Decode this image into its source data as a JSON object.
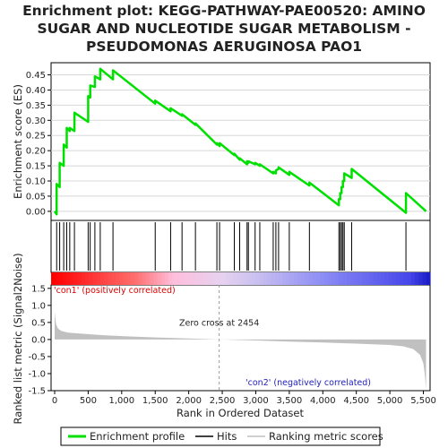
{
  "chart_data": {
    "type": "line",
    "title_lines": [
      "Enrichment plot: KEGG-PATHWAY-PAE00520: AMINO",
      "SUGAR AND NUCLEOTIDE SUGAR METABOLISM -",
      "PSEUDOMONAS AERUGINOSA PAO1"
    ],
    "xlabel": "Rank in Ordered Dataset",
    "ylabel_top": "Enrichment score (ES)",
    "ylabel_bottom": "Ranked list metric (Signal2Noise)",
    "xlim": [
      0,
      5600
    ],
    "x_ticks": [
      0,
      500,
      1000,
      1500,
      2000,
      2500,
      3000,
      3500,
      4000,
      4500,
      5000,
      5500
    ],
    "x_tick_labels": [
      "0",
      "500",
      "1,000",
      "1,500",
      "2,000",
      "2,500",
      "3,000",
      "3,500",
      "4,000",
      "4,500",
      "5,000",
      "5,500"
    ],
    "es_ylim": [
      -0.03,
      0.49
    ],
    "es_ticks": [
      0.0,
      0.05,
      0.1,
      0.15,
      0.2,
      0.25,
      0.3,
      0.35,
      0.4,
      0.45
    ],
    "es_tick_labels": [
      "0.00",
      "0.05",
      "0.10",
      "0.15",
      "0.20",
      "0.25",
      "0.30",
      "0.35",
      "0.40",
      "0.45"
    ],
    "metric_ylim": [
      -1.5,
      1.6
    ],
    "metric_ticks": [
      -1.5,
      -1.0,
      -0.5,
      0.0,
      0.5,
      1.0,
      1.5
    ],
    "metric_tick_labels": [
      "-1.5",
      "-1.0",
      "-0.5",
      "0.0",
      "0.5",
      "1.0",
      "1.5"
    ],
    "hits": [
      30,
      75,
      135,
      180,
      225,
      295,
      500,
      530,
      600,
      680,
      870,
      1500,
      1730,
      1900,
      2100,
      2420,
      2460,
      2680,
      2760,
      2870,
      2890,
      2990,
      3060,
      3260,
      3300,
      3340,
      3500,
      3800,
      4240,
      4260,
      4280,
      4300,
      4320,
      4430,
      5240
    ],
    "es_curve": {
      "x": [
        0,
        30,
        30,
        75,
        75,
        135,
        135,
        180,
        180,
        225,
        225,
        295,
        295,
        500,
        500,
        530,
        530,
        600,
        600,
        680,
        680,
        870,
        870,
        1500,
        1500,
        1730,
        1730,
        1900,
        1900,
        2100,
        2100,
        2420,
        2420,
        2460,
        2460,
        2680,
        2680,
        2760,
        2760,
        2870,
        2870,
        2890,
        2890,
        2990,
        2990,
        3060,
        3060,
        3260,
        3260,
        3300,
        3300,
        3340,
        3340,
        3500,
        3500,
        3800,
        3800,
        4240,
        4240,
        4260,
        4260,
        4280,
        4280,
        4300,
        4300,
        4320,
        4320,
        4430,
        4430,
        5240,
        5240,
        5540
      ],
      "y": [
        0.0,
        -0.01,
        0.09,
        0.08,
        0.16,
        0.15,
        0.22,
        0.21,
        0.275,
        0.265,
        0.275,
        0.265,
        0.325,
        0.295,
        0.38,
        0.375,
        0.415,
        0.41,
        0.445,
        0.435,
        0.47,
        0.435,
        0.465,
        0.355,
        0.365,
        0.33,
        0.34,
        0.315,
        0.32,
        0.285,
        0.29,
        0.22,
        0.225,
        0.215,
        0.225,
        0.185,
        0.19,
        0.17,
        0.175,
        0.155,
        0.165,
        0.16,
        0.165,
        0.155,
        0.16,
        0.15,
        0.155,
        0.125,
        0.13,
        0.125,
        0.135,
        0.14,
        0.145,
        0.12,
        0.13,
        0.085,
        0.095,
        0.02,
        0.04,
        0.04,
        0.06,
        0.06,
        0.08,
        0.08,
        0.1,
        0.1,
        0.125,
        0.11,
        0.14,
        -0.005,
        0.06,
        0.0
      ]
    },
    "metric_curve": {
      "x": [
        0,
        20,
        50,
        100,
        200,
        400,
        700,
        1000,
        1500,
        2000,
        2454,
        3000,
        3500,
        4000,
        4500,
        5000,
        5200,
        5350,
        5450,
        5500,
        5520,
        5540
      ],
      "y": [
        0.8,
        0.45,
        0.32,
        0.25,
        0.2,
        0.17,
        0.13,
        0.1,
        0.06,
        0.03,
        0.0,
        -0.03,
        -0.06,
        -0.09,
        -0.12,
        -0.16,
        -0.2,
        -0.28,
        -0.45,
        -0.7,
        -1.0,
        -1.45
      ]
    },
    "zero_cross_label": "Zero cross at 2454",
    "zero_cross_x": 2454,
    "pos_label": "'con1' (positively correlated)",
    "neg_label": "'con2' (negatively correlated)",
    "legend": [
      "Enrichment profile",
      "Hits",
      "Ranking metric scores"
    ],
    "colors": {
      "es_line": "#00e000",
      "hit": "#000000",
      "metric_fill": "#c0c0c0",
      "pos_text": "#dd0000",
      "neg_text": "#2222bb",
      "grid": "#d8d8d8"
    }
  }
}
